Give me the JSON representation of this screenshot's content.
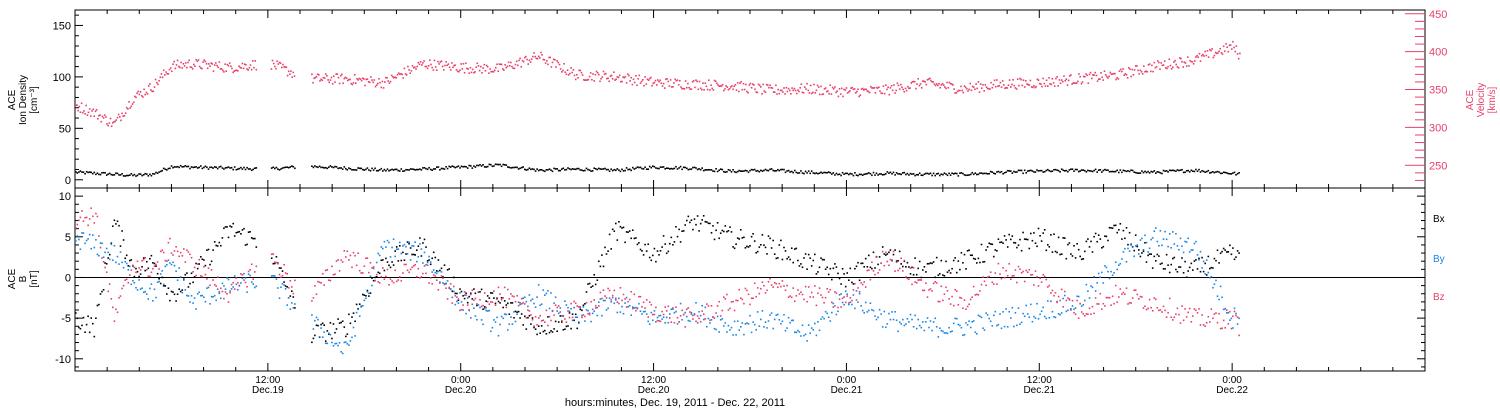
{
  "chart_data": [
    {
      "type": "scatter",
      "panel": "plasma",
      "ylabel_left": [
        "ACE",
        "Ion Density",
        "[cm⁻³]"
      ],
      "ylabel_right": [
        "ACE",
        "Velocity",
        "[km/s]"
      ],
      "ylim_left": [
        -8,
        165
      ],
      "ylim_right": [
        220,
        455
      ],
      "yticks_left": [
        "0",
        "50",
        "100",
        "150"
      ],
      "yticks_right": [
        "250",
        "300",
        "350",
        "400",
        "450"
      ],
      "series": [
        {
          "axis": "left",
          "color": "#000000",
          "x": [
            0,
            0.05,
            0.1,
            0.15,
            0.2,
            0.25,
            0.3,
            0.4,
            0.5,
            0.6,
            0.7,
            0.8,
            0.9,
            1.0,
            1.1,
            1.2,
            1.3,
            1.4,
            1.5,
            1.6,
            1.7,
            1.8,
            1.9,
            2.0,
            2.1,
            2.2,
            2.3,
            2.4,
            2.5,
            2.6,
            2.7,
            2.8,
            2.9,
            3.0,
            3.02
          ],
          "y": [
            8,
            7,
            6,
            5,
            6,
            14,
            13,
            12,
            11,
            14,
            12,
            10,
            11,
            13,
            15,
            10,
            11,
            10,
            13,
            12,
            9,
            10,
            8,
            6,
            7,
            6,
            6,
            8,
            9,
            10,
            9,
            8,
            10,
            7,
            6
          ]
        },
        {
          "axis": "right",
          "color": "#e8406a",
          "x": [
            0,
            0.05,
            0.1,
            0.15,
            0.2,
            0.25,
            0.3,
            0.4,
            0.5,
            0.6,
            0.7,
            0.8,
            0.9,
            1.0,
            1.1,
            1.2,
            1.3,
            1.4,
            1.5,
            1.6,
            1.7,
            1.8,
            1.9,
            2.0,
            2.1,
            2.2,
            2.3,
            2.4,
            2.5,
            2.6,
            2.7,
            2.8,
            2.9,
            3.0,
            3.02
          ],
          "y": [
            330,
            320,
            305,
            340,
            355,
            382,
            385,
            380,
            386,
            365,
            365,
            360,
            385,
            380,
            378,
            395,
            370,
            368,
            360,
            358,
            356,
            350,
            352,
            348,
            350,
            360,
            352,
            358,
            360,
            365,
            370,
            382,
            390,
            408,
            395
          ]
        }
      ]
    },
    {
      "type": "scatter",
      "panel": "magnetic-field",
      "ylabel_left": [
        "ACE",
        "B",
        "[nT]"
      ],
      "ylim": [
        -11.5,
        11
      ],
      "yticks": [
        "-10",
        "-5",
        "0",
        "5",
        "10"
      ],
      "zero_line": true,
      "xlabel": "hours:minutes, Dec. 19, 2011 - Dec. 22, 2011",
      "xlim": [
        0,
        3.5
      ],
      "x_ticks": [
        {
          "x": 0.5,
          "time": "12:00",
          "date": "Dec.19"
        },
        {
          "x": 1.0,
          "time": "0:00",
          "date": "Dec.20"
        },
        {
          "x": 1.5,
          "time": "12:00",
          "date": "Dec.20"
        },
        {
          "x": 2.0,
          "time": "0:00",
          "date": "Dec.21"
        },
        {
          "x": 2.5,
          "time": "12:00",
          "date": "Dec.21"
        },
        {
          "x": 3.0,
          "time": "0:00",
          "date": "Dec.22"
        }
      ],
      "legend": [
        "Bx",
        "By",
        "Bz"
      ],
      "series": [
        {
          "name": "Bx",
          "color": "#000000",
          "x": [
            0,
            0.05,
            0.1,
            0.15,
            0.2,
            0.25,
            0.3,
            0.4,
            0.5,
            0.6,
            0.7,
            0.8,
            0.9,
            1.0,
            1.1,
            1.2,
            1.3,
            1.4,
            1.5,
            1.6,
            1.7,
            1.8,
            1.9,
            2.0,
            2.1,
            2.2,
            2.3,
            2.4,
            2.5,
            2.6,
            2.7,
            2.8,
            2.9,
            3.0,
            3.02
          ],
          "y": [
            -5,
            -6,
            7,
            1,
            2,
            -2,
            0,
            6,
            4,
            -7,
            -6,
            2,
            4,
            -2,
            -3,
            -6,
            -5,
            6,
            3,
            7,
            5,
            4,
            2,
            0,
            3,
            1,
            2,
            4,
            5,
            3,
            6,
            2,
            1,
            3,
            2
          ]
        },
        {
          "name": "By",
          "color": "#1a86e6",
          "x": [
            0,
            0.05,
            0.1,
            0.15,
            0.2,
            0.25,
            0.3,
            0.4,
            0.5,
            0.6,
            0.7,
            0.8,
            0.9,
            1.0,
            1.1,
            1.2,
            1.3,
            1.4,
            1.5,
            1.6,
            1.7,
            1.8,
            1.9,
            2.0,
            2.1,
            2.2,
            2.3,
            2.4,
            2.5,
            2.6,
            2.7,
            2.8,
            2.9,
            3.0,
            3.02
          ],
          "y": [
            5,
            4,
            3,
            0,
            -2,
            2,
            -3,
            -1,
            0,
            -5,
            -9,
            4,
            3,
            -3,
            -6,
            -2,
            -5,
            -3,
            -5,
            -4,
            -6,
            -5,
            -7,
            -2,
            -5,
            -6,
            -6,
            -5,
            -4,
            -3,
            2,
            5,
            4,
            -5,
            -4
          ]
        },
        {
          "name": "Bz",
          "color": "#e8406a",
          "x": [
            0,
            0.05,
            0.1,
            0.15,
            0.2,
            0.25,
            0.3,
            0.4,
            0.5,
            0.6,
            0.7,
            0.8,
            0.9,
            1.0,
            1.1,
            1.2,
            1.3,
            1.4,
            1.5,
            1.6,
            1.7,
            1.8,
            1.9,
            2.0,
            2.1,
            2.2,
            2.3,
            2.4,
            2.5,
            2.6,
            2.7,
            2.8,
            2.9,
            3.0,
            3.02
          ],
          "y": [
            7,
            8,
            -5,
            2,
            1,
            4,
            2,
            -2,
            3,
            -3,
            3,
            0,
            1,
            -3,
            -2,
            -5,
            -4,
            -2,
            -4,
            -5,
            -3,
            -1,
            -2,
            -3,
            3,
            -1,
            -3,
            1,
            0,
            -4,
            -2,
            -3,
            -5,
            -5,
            -6
          ]
        }
      ]
    }
  ]
}
